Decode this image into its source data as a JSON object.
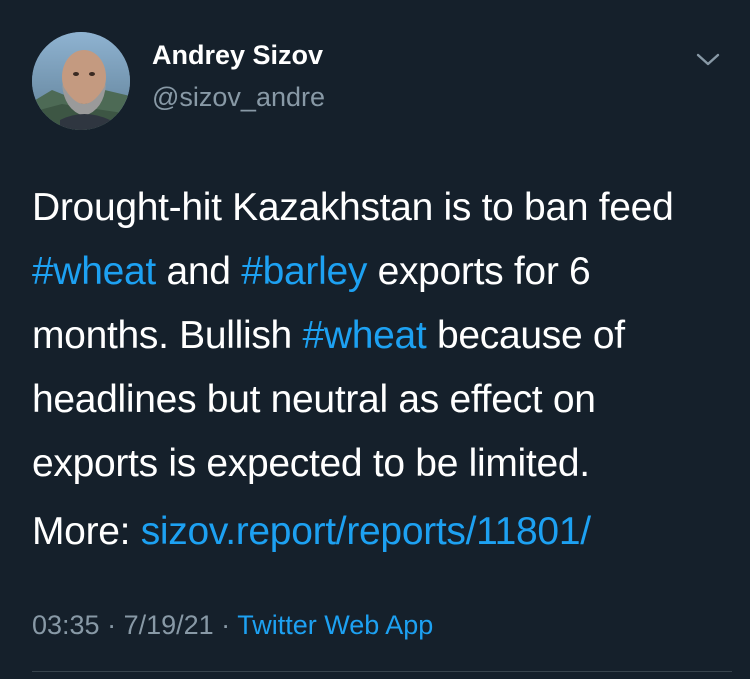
{
  "author": {
    "display_name": "Andrey Sizov",
    "handle": "@sizov_andre"
  },
  "tweet": {
    "lines": [
      [
        {
          "text": "Drought-hit Kazakhstan is to ban feed",
          "type": "text"
        }
      ],
      [
        {
          "text": "#wheat",
          "type": "hashtag"
        },
        {
          "text": " and ",
          "type": "text"
        },
        {
          "text": "#barley",
          "type": "hashtag"
        },
        {
          "text": " exports for 6",
          "type": "text"
        }
      ],
      [
        {
          "text": "months. Bullish ",
          "type": "text"
        },
        {
          "text": "#wheat",
          "type": "hashtag"
        },
        {
          "text": " because of",
          "type": "text"
        }
      ],
      [
        {
          "text": "headlines but neutral as effect on",
          "type": "text"
        }
      ],
      [
        {
          "text": "exports is expected to be limited.",
          "type": "text"
        }
      ]
    ],
    "more_label": "More: ",
    "more_link": "sizov.report/reports/11801/"
  },
  "meta": {
    "time": "03:35",
    "date": "7/19/21",
    "separator": " · ",
    "source": "Twitter Web App"
  },
  "icons": {
    "more": "chevron-down-icon"
  },
  "colors": {
    "background": "#15202b",
    "primary_text": "#ffffff",
    "secondary_text": "#8899a6",
    "link": "#1da1f2",
    "divider": "#38444d"
  }
}
